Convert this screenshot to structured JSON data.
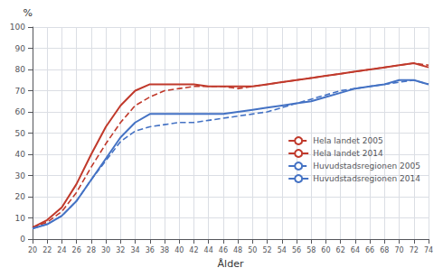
{
  "chart_data": {
    "type": "line",
    "xlabel": "Ålder",
    "ylabel": "%",
    "x": [
      20,
      22,
      24,
      26,
      28,
      30,
      32,
      34,
      36,
      38,
      40,
      42,
      44,
      46,
      48,
      50,
      52,
      54,
      56,
      58,
      60,
      62,
      64,
      66,
      68,
      70,
      72,
      74
    ],
    "series": [
      {
        "name": "Hela landet 2005",
        "color": "#c0392b",
        "line_style": "dashed",
        "values": [
          5.5,
          8,
          13,
          22,
          34,
          45,
          55,
          63,
          67,
          70,
          71,
          72,
          72,
          72,
          71,
          72,
          73,
          74,
          75,
          76,
          77,
          78,
          79,
          80,
          81,
          82,
          83,
          82
        ]
      },
      {
        "name": "Hela landet 2014",
        "color": "#c0392b",
        "line_style": "solid",
        "values": [
          5.5,
          9,
          15,
          26,
          40,
          53,
          63,
          70,
          73,
          73,
          73,
          73,
          72,
          72,
          72,
          72,
          73,
          74,
          75,
          76,
          77,
          78,
          79,
          80,
          81,
          82,
          83,
          81
        ]
      },
      {
        "name": "Huvudstadsregionen 2005",
        "color": "#4472c4",
        "line_style": "dashed",
        "values": [
          5,
          7,
          11,
          18,
          28,
          37,
          46,
          51,
          53,
          54,
          55,
          55,
          56,
          57,
          58,
          59,
          60,
          62,
          64,
          66,
          68,
          70,
          71,
          72,
          73,
          74,
          75,
          73
        ]
      },
      {
        "name": "Huvudstadsregionen 2014",
        "color": "#4472c4",
        "line_style": "solid",
        "values": [
          5,
          7,
          11,
          18,
          28,
          38,
          48,
          55,
          59,
          59,
          59,
          59,
          59,
          59,
          60,
          61,
          62,
          63,
          64,
          65,
          67,
          69,
          71,
          72,
          73,
          75,
          75,
          73
        ]
      }
    ],
    "xlim": [
      20,
      74
    ],
    "xticks": [
      20,
      22,
      24,
      26,
      28,
      30,
      32,
      34,
      36,
      38,
      40,
      42,
      44,
      46,
      48,
      50,
      52,
      54,
      56,
      58,
      60,
      62,
      64,
      66,
      68,
      70,
      72,
      74
    ],
    "ylim": [
      0,
      100
    ],
    "yticks": [
      0,
      10,
      20,
      30,
      40,
      50,
      60,
      70,
      80,
      90,
      100
    ],
    "grid": true,
    "legend": "right"
  }
}
